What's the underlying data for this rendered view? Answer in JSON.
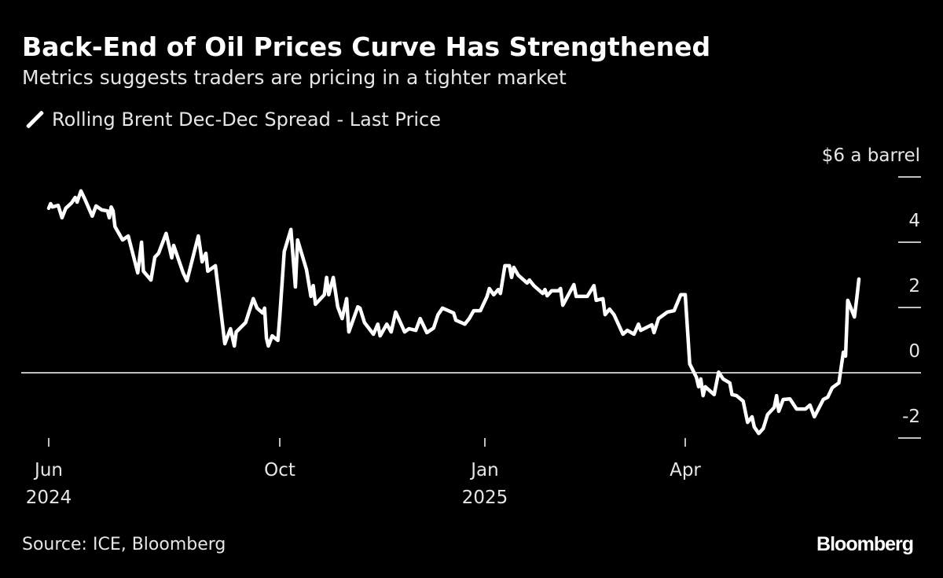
{
  "header": {
    "title": "Back-End of Oil Prices Curve Has Strengthened",
    "subtitle": "Metrics suggests traders are pricing in a tighter market"
  },
  "footer": {
    "source": "Source: ICE, Bloomberg",
    "logo": "Bloomberg"
  },
  "colors": {
    "background": "#000000",
    "line": "#ffffff",
    "text": "#e6e6e6"
  },
  "chart_data": {
    "type": "line",
    "title": "Back-End of Oil Prices Curve Has Strengthened",
    "subtitle": "Metrics suggests traders are pricing in a tighter market",
    "legend_position": "top-left",
    "grid": false,
    "ylabel": "$6 a barrel",
    "ylim": [
      -2,
      6
    ],
    "y_axis_side": "right",
    "y_ticks": [
      {
        "value": 6,
        "label": "$6 a barrel"
      },
      {
        "value": 4,
        "label": "4"
      },
      {
        "value": 2,
        "label": "2"
      },
      {
        "value": 0,
        "label": "0"
      },
      {
        "value": -2,
        "label": "-2"
      }
    ],
    "x_ticks": [
      {
        "date": "2024-06-01",
        "label": "Jun",
        "year": "2024"
      },
      {
        "date": "2024-10-01",
        "label": "Oct",
        "year": ""
      },
      {
        "date": "2025-01-01",
        "label": "Jan",
        "year": "2025"
      },
      {
        "date": "2025-04-01",
        "label": "Apr",
        "year": ""
      }
    ],
    "reference_line": 0,
    "series": [
      {
        "name": "Rolling Brent Dec-Dec Spread - Last Price",
        "color": "#ffffff",
        "points": [
          [
            "2024-06-01",
            5.04
          ],
          [
            "2024-06-02",
            5.18
          ],
          [
            "2024-06-03",
            5.08
          ],
          [
            "2024-06-06",
            5.13
          ],
          [
            "2024-06-08",
            4.75
          ],
          [
            "2024-06-10",
            5.04
          ],
          [
            "2024-06-13",
            5.2
          ],
          [
            "2024-06-15",
            5.37
          ],
          [
            "2024-06-16",
            5.23
          ],
          [
            "2024-06-18",
            5.57
          ],
          [
            "2024-06-20",
            5.33
          ],
          [
            "2024-06-24",
            4.8
          ],
          [
            "2024-06-26",
            5.11
          ],
          [
            "2024-06-29",
            4.99
          ],
          [
            "2024-07-02",
            4.96
          ],
          [
            "2024-07-03",
            4.75
          ],
          [
            "2024-07-04",
            5.08
          ],
          [
            "2024-07-05",
            4.96
          ],
          [
            "2024-07-06",
            4.48
          ],
          [
            "2024-07-10",
            4.07
          ],
          [
            "2024-07-13",
            4.19
          ],
          [
            "2024-07-18",
            3.06
          ],
          [
            "2024-07-20",
            4.0
          ],
          [
            "2024-07-21",
            3.11
          ],
          [
            "2024-07-25",
            2.84
          ],
          [
            "2024-07-27",
            3.54
          ],
          [
            "2024-07-29",
            3.66
          ],
          [
            "2024-08-02",
            4.27
          ],
          [
            "2024-08-05",
            3.52
          ],
          [
            "2024-08-06",
            3.9
          ],
          [
            "2024-08-11",
            3.06
          ],
          [
            "2024-08-13",
            2.82
          ],
          [
            "2024-08-19",
            4.19
          ],
          [
            "2024-08-21",
            3.4
          ],
          [
            "2024-08-23",
            3.66
          ],
          [
            "2024-08-24",
            3.11
          ],
          [
            "2024-08-28",
            3.28
          ],
          [
            "2024-09-02",
            0.89
          ],
          [
            "2024-09-05",
            1.35
          ],
          [
            "2024-09-07",
            0.82
          ],
          [
            "2024-09-08",
            1.25
          ],
          [
            "2024-09-13",
            1.54
          ],
          [
            "2024-09-17",
            2.27
          ],
          [
            "2024-09-19",
            1.98
          ],
          [
            "2024-09-22",
            1.83
          ],
          [
            "2024-09-23",
            1.98
          ],
          [
            "2024-09-24",
            1.06
          ],
          [
            "2024-09-25",
            0.82
          ],
          [
            "2024-09-27",
            1.13
          ],
          [
            "2024-09-30",
            0.99
          ],
          [
            "2024-10-01",
            1.71
          ],
          [
            "2024-10-03",
            3.71
          ],
          [
            "2024-10-06",
            4.39
          ],
          [
            "2024-10-08",
            2.63
          ],
          [
            "2024-10-09",
            4.07
          ],
          [
            "2024-10-13",
            3.16
          ],
          [
            "2024-10-15",
            2.34
          ],
          [
            "2024-10-16",
            2.67
          ],
          [
            "2024-10-17",
            2.1
          ],
          [
            "2024-10-21",
            2.39
          ],
          [
            "2024-10-22",
            2.92
          ],
          [
            "2024-10-23",
            2.39
          ],
          [
            "2024-10-25",
            2.92
          ],
          [
            "2024-10-27",
            2.02
          ],
          [
            "2024-10-29",
            1.66
          ],
          [
            "2024-10-31",
            2.27
          ],
          [
            "2024-11-01",
            1.25
          ],
          [
            "2024-11-05",
            2.02
          ],
          [
            "2024-11-06",
            1.98
          ],
          [
            "2024-11-08",
            1.54
          ],
          [
            "2024-11-12",
            1.18
          ],
          [
            "2024-11-14",
            1.49
          ],
          [
            "2024-11-15",
            1.13
          ],
          [
            "2024-11-18",
            1.49
          ],
          [
            "2024-11-20",
            1.25
          ],
          [
            "2024-11-22",
            1.86
          ],
          [
            "2024-11-26",
            1.25
          ],
          [
            "2024-11-28",
            1.35
          ],
          [
            "2024-12-01",
            1.3
          ],
          [
            "2024-12-03",
            1.66
          ],
          [
            "2024-12-06",
            1.23
          ],
          [
            "2024-12-09",
            1.37
          ],
          [
            "2024-12-11",
            1.78
          ],
          [
            "2024-12-13",
            1.98
          ],
          [
            "2024-12-18",
            1.83
          ],
          [
            "2024-12-19",
            1.61
          ],
          [
            "2024-12-23",
            1.49
          ],
          [
            "2024-12-25",
            1.66
          ],
          [
            "2024-12-27",
            1.9
          ],
          [
            "2024-12-30",
            1.9
          ],
          [
            "2025-01-02",
            2.34
          ],
          [
            "2025-01-03",
            2.58
          ],
          [
            "2025-01-05",
            2.39
          ],
          [
            "2025-01-07",
            2.55
          ],
          [
            "2025-01-08",
            2.43
          ],
          [
            "2025-01-10",
            3.28
          ],
          [
            "2025-01-12",
            3.28
          ],
          [
            "2025-01-13",
            2.92
          ],
          [
            "2025-01-14",
            3.23
          ],
          [
            "2025-01-16",
            2.99
          ],
          [
            "2025-01-20",
            2.75
          ],
          [
            "2025-01-21",
            2.84
          ],
          [
            "2025-01-23",
            2.67
          ],
          [
            "2025-01-27",
            2.43
          ],
          [
            "2025-01-28",
            2.55
          ],
          [
            "2025-01-29",
            2.36
          ],
          [
            "2025-01-31",
            2.51
          ],
          [
            "2025-02-03",
            2.51
          ],
          [
            "2025-02-04",
            2.58
          ],
          [
            "2025-02-05",
            2.07
          ],
          [
            "2025-02-10",
            2.7
          ],
          [
            "2025-02-11",
            2.34
          ],
          [
            "2025-02-13",
            2.34
          ],
          [
            "2025-02-16",
            2.34
          ],
          [
            "2025-02-19",
            2.67
          ],
          [
            "2025-02-20",
            2.22
          ],
          [
            "2025-02-23",
            2.27
          ],
          [
            "2025-02-24",
            1.78
          ],
          [
            "2025-02-26",
            1.95
          ],
          [
            "2025-02-28",
            1.78
          ],
          [
            "2025-03-04",
            1.18
          ],
          [
            "2025-03-06",
            1.3
          ],
          [
            "2025-03-09",
            1.18
          ],
          [
            "2025-03-11",
            1.49
          ],
          [
            "2025-03-12",
            1.3
          ],
          [
            "2025-03-17",
            1.47
          ],
          [
            "2025-03-18",
            1.23
          ],
          [
            "2025-03-20",
            1.66
          ],
          [
            "2025-03-24",
            1.86
          ],
          [
            "2025-03-27",
            1.9
          ],
          [
            "2025-03-30",
            2.39
          ],
          [
            "2025-04-01",
            2.39
          ],
          [
            "2025-04-03",
            0.27
          ],
          [
            "2025-04-06",
            -0.14
          ],
          [
            "2025-04-07",
            -0.43
          ],
          [
            "2025-04-08",
            -0.19
          ],
          [
            "2025-04-09",
            -0.7
          ],
          [
            "2025-04-10",
            -0.43
          ],
          [
            "2025-04-14",
            -0.67
          ],
          [
            "2025-04-16",
            0.02
          ],
          [
            "2025-04-18",
            -0.19
          ],
          [
            "2025-04-21",
            -0.31
          ],
          [
            "2025-04-22",
            -0.67
          ],
          [
            "2025-04-24",
            -0.7
          ],
          [
            "2025-04-27",
            -0.87
          ],
          [
            "2025-04-29",
            -1.52
          ],
          [
            "2025-05-01",
            -1.35
          ],
          [
            "2025-05-02",
            -1.66
          ],
          [
            "2025-05-04",
            -1.86
          ],
          [
            "2025-05-06",
            -1.71
          ],
          [
            "2025-05-08",
            -1.28
          ],
          [
            "2025-05-11",
            -1.06
          ],
          [
            "2025-05-12",
            -0.7
          ],
          [
            "2025-05-13",
            -1.18
          ],
          [
            "2025-05-15",
            -0.82
          ],
          [
            "2025-05-18",
            -0.8
          ],
          [
            "2025-05-21",
            -1.11
          ],
          [
            "2025-05-25",
            -1.11
          ],
          [
            "2025-05-27",
            -0.99
          ],
          [
            "2025-05-29",
            -1.35
          ],
          [
            "2025-06-02",
            -0.82
          ],
          [
            "2025-06-04",
            -0.75
          ],
          [
            "2025-06-06",
            -0.46
          ],
          [
            "2025-06-09",
            -0.31
          ],
          [
            "2025-06-11",
            0.63
          ],
          [
            "2025-06-12",
            0.51
          ],
          [
            "2025-06-13",
            2.22
          ],
          [
            "2025-06-16",
            1.71
          ],
          [
            "2025-06-17",
            2.27
          ],
          [
            "2025-06-18",
            2.87
          ]
        ]
      }
    ]
  }
}
